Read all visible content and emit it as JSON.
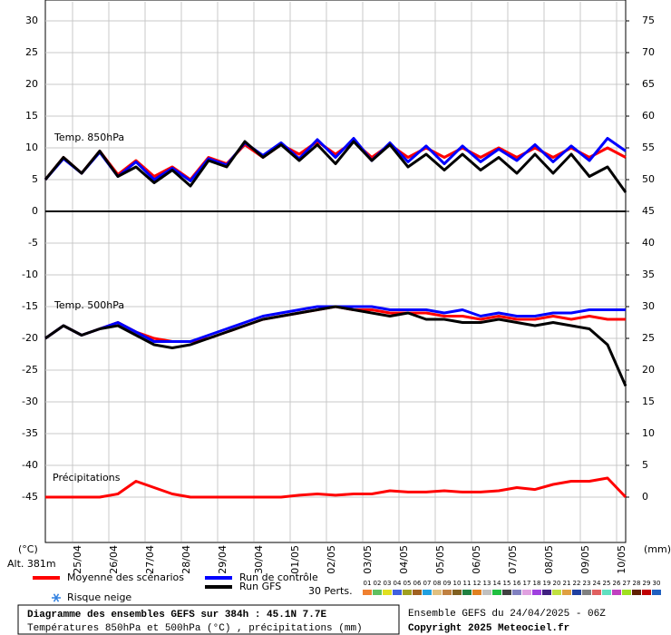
{
  "chart_data": {
    "type": "line",
    "x": [
      0,
      12,
      24,
      36,
      48,
      60,
      72,
      84,
      96,
      108,
      120,
      132,
      144,
      156,
      168,
      180,
      192,
      204,
      216,
      228,
      240,
      252,
      264,
      276,
      288,
      300,
      312,
      324,
      336,
      348,
      360,
      372,
      384
    ],
    "xlim": [
      0,
      384
    ],
    "xticks": [
      {
        "value": 18,
        "label": "25/04"
      },
      {
        "value": 42,
        "label": "26/04"
      },
      {
        "value": 66,
        "label": "27/04"
      },
      {
        "value": 90,
        "label": "28/04"
      },
      {
        "value": 114,
        "label": "29/04"
      },
      {
        "value": 138,
        "label": "30/04"
      },
      {
        "value": 162,
        "label": "01/05"
      },
      {
        "value": 186,
        "label": "02/05"
      },
      {
        "value": 210,
        "label": "03/05"
      },
      {
        "value": 234,
        "label": "04/05"
      },
      {
        "value": 258,
        "label": "05/05"
      },
      {
        "value": 282,
        "label": "06/05"
      },
      {
        "value": 306,
        "label": "07/05"
      },
      {
        "value": 330,
        "label": "08/05"
      },
      {
        "value": 354,
        "label": "09/05"
      },
      {
        "value": 378,
        "label": "10/05"
      }
    ],
    "ylim": [
      -52,
      33
    ],
    "yticks": [
      30,
      25,
      20,
      15,
      10,
      5,
      0,
      -5,
      -10,
      -15,
      -20,
      -25,
      -30,
      -35,
      -40,
      -45
    ],
    "y2lim": [
      -7,
      78
    ],
    "y2ticks": [
      75,
      70,
      65,
      60,
      55,
      50,
      45,
      40,
      35,
      30,
      25,
      20,
      15,
      10,
      5,
      0
    ],
    "y_unit": "(°C)",
    "y2_unit": "(mm)",
    "altitude": "Alt. 381m",
    "panel_labels": [
      "Temp. 850hPa",
      "Temp. 500hPa",
      "Précipitations"
    ],
    "grid": true,
    "series": [
      {
        "name": "Moyenne des scénarios",
        "color": "#ff0000",
        "values": [
          5,
          8.5,
          6,
          9.5,
          5.8,
          8,
          5.5,
          7,
          5,
          8.5,
          7.5,
          10.5,
          8.5,
          10.5,
          9,
          11,
          9,
          11,
          8.5,
          10.5,
          8.5,
          10,
          8.5,
          10,
          8.5,
          10,
          8.5,
          10,
          8.5,
          10,
          8.5,
          10,
          8.5
        ]
      },
      {
        "name": "Run de contrôle",
        "color": "#0000ff",
        "values": [
          5,
          8.3,
          6,
          9.3,
          5.5,
          7.8,
          5,
          6.8,
          4.8,
          8.3,
          7.3,
          10.8,
          8.8,
          10.8,
          8.3,
          11.3,
          8.5,
          11.5,
          8,
          10.8,
          7.8,
          10.3,
          7.5,
          10.3,
          7.8,
          9.8,
          8,
          10.5,
          7.8,
          10.3,
          8,
          11.5,
          9.5
        ]
      },
      {
        "name": "Run GFS",
        "color": "#000000",
        "values": [
          5,
          8.5,
          6,
          9.5,
          5.5,
          7,
          4.5,
          6.5,
          4,
          8,
          7,
          11,
          8.5,
          10.5,
          8,
          10.5,
          7.5,
          11,
          8,
          10.5,
          7,
          9,
          6.5,
          9,
          6.5,
          8.5,
          6,
          9,
          6,
          9,
          5.5,
          7,
          3
        ]
      },
      {
        "color": "#ff0000",
        "values": [
          -20,
          -18,
          -19.5,
          -18.5,
          -17.5,
          -19,
          -20,
          -20.5,
          -20.5,
          -20,
          -19,
          -18,
          -17,
          -16.5,
          -16,
          -15.5,
          -15,
          -15.5,
          -15.5,
          -16,
          -16,
          -16,
          -16.5,
          -16.5,
          -17,
          -16.5,
          -17,
          -17,
          -16.5,
          -17,
          -16.5,
          -17,
          -17
        ]
      },
      {
        "color": "#0000ff",
        "values": [
          -20,
          -18,
          -19.5,
          -18.5,
          -17.5,
          -19,
          -20.5,
          -20.5,
          -20.5,
          -19.5,
          -18.5,
          -17.5,
          -16.5,
          -16,
          -15.5,
          -15,
          -15,
          -15,
          -15,
          -15.5,
          -15.5,
          -15.5,
          -16,
          -15.5,
          -16.5,
          -16,
          -16.5,
          -16.5,
          -16,
          -16,
          -15.5,
          -15.5,
          -15.5
        ]
      },
      {
        "color": "#000000",
        "values": [
          -20,
          -18,
          -19.5,
          -18.5,
          -18,
          -19.5,
          -21,
          -21.5,
          -21,
          -20,
          -19,
          -18,
          -17,
          -16.5,
          -16,
          -15.5,
          -15,
          -15.5,
          -16,
          -16.5,
          -16,
          -17,
          -17,
          -17.5,
          -17.5,
          -17,
          -17.5,
          -18,
          -17.5,
          -18,
          -18.5,
          -21,
          -27.5
        ]
      },
      {
        "color": "#ff0000",
        "axis": "y2",
        "values": [
          0,
          0,
          0,
          0,
          0.5,
          2.5,
          1.5,
          0.5,
          0,
          0,
          0,
          0,
          0,
          0,
          0.3,
          0.5,
          0.3,
          0.5,
          0.5,
          1,
          0.8,
          0.8,
          1,
          0.8,
          0.8,
          1,
          1.5,
          1.2,
          2,
          2.5,
          2.5,
          3,
          0
        ]
      }
    ],
    "snow_label": "Risque neige",
    "perturbations_label": "30 Perts.",
    "perturbations": [
      {
        "name": "01",
        "color": "#f08030"
      },
      {
        "name": "02",
        "color": "#60c060"
      },
      {
        "name": "03",
        "color": "#e0e020"
      },
      {
        "name": "04",
        "color": "#4060e0"
      },
      {
        "name": "05",
        "color": "#a0a020"
      },
      {
        "name": "06",
        "color": "#a06020"
      },
      {
        "name": "07",
        "color": "#20a0e0"
      },
      {
        "name": "08",
        "color": "#e0c080"
      },
      {
        "name": "09",
        "color": "#c08040"
      },
      {
        "name": "10",
        "color": "#806020"
      },
      {
        "name": "11",
        "color": "#208040"
      },
      {
        "name": "12",
        "color": "#e08020"
      },
      {
        "name": "13",
        "color": "#c0c0c0"
      },
      {
        "name": "14",
        "color": "#20c040"
      },
      {
        "name": "15",
        "color": "#404040"
      },
      {
        "name": "16",
        "color": "#8080c0"
      },
      {
        "name": "17",
        "color": "#e0a0e0"
      },
      {
        "name": "18",
        "color": "#a040e0"
      },
      {
        "name": "19",
        "color": "#402080"
      },
      {
        "name": "20",
        "color": "#c0e040"
      },
      {
        "name": "21",
        "color": "#e0a040"
      },
      {
        "name": "22",
        "color": "#2040a0"
      },
      {
        "name": "23",
        "color": "#808080"
      },
      {
        "name": "24",
        "color": "#e06060"
      },
      {
        "name": "25",
        "color": "#60e0c0"
      },
      {
        "name": "26",
        "color": "#c040c0"
      },
      {
        "name": "27",
        "color": "#a0e020"
      },
      {
        "name": "28",
        "color": "#602000"
      },
      {
        "name": "29",
        "color": "#c00000"
      },
      {
        "name": "30",
        "color": "#2060c0"
      }
    ],
    "footer": {
      "title": "Diagramme des ensembles GEFS sur 384h : 45.1N 7.7E",
      "subtitle": "Températures 850hPa et 500hPa (°C) , précipitations (mm)",
      "run": "Ensemble GEFS du 24/04/2025 - 06Z",
      "copyright": "Copyright 2025 Meteociel.fr"
    }
  }
}
